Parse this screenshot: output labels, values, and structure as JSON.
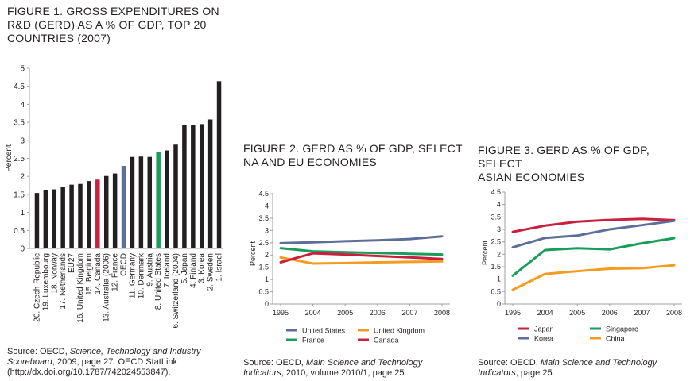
{
  "colors": {
    "black": "#231f20",
    "red": "#c8203e",
    "blue": "#5b6f9a",
    "green": "#1a9d5a",
    "orange": "#f39c1f",
    "axis": "#9d9fa2"
  },
  "fig1": {
    "title": "FIGURE 1. GROSS EXPENDITURES ON\nR&D (GERD) AS A % OF GDP, TOP 20\nCOUNTRIES (2007)",
    "source_a": "Source: OECD, ",
    "source_b": "Science, Technology and Industry Scoreboard",
    "source_c": ", 2009, page 27. OECD StatLink (http://dx.doi.org/10.1787/742024553847)."
  },
  "fig2": {
    "title": "FIGURE 2. GERD AS % OF GDP, SELECT\nNA AND EU ECONOMIES",
    "source_a": "Source: OECD, ",
    "source_b": "Main Science and Technology Indicators",
    "source_c": ", 2010, volume 2010/1, page 25."
  },
  "fig3": {
    "title": "FIGURE 3. GERD AS % OF GDP, SELECT\nASIAN ECONOMIES",
    "source_a": "Source: OECD, ",
    "source_b": "Main Science and Technology Indicators",
    "source_c": ", page 25."
  },
  "chart_data": [
    {
      "type": "bar",
      "ylabel": "Percent",
      "ylim": [
        0,
        5
      ],
      "yticks": [
        "0",
        "0.5",
        "1",
        "1.5",
        "2",
        "2.5",
        "3",
        "3.5",
        "4",
        "4.5",
        "5"
      ],
      "categories": [
        "20. Czech Republic",
        "19. Luxembourg",
        "18. Norway",
        "17. Netherlands",
        "EU27",
        "16. United Kingdom",
        "15. Belgium",
        "14. Canada",
        "13. Australia (2006)",
        "12. France",
        "OECD",
        "11. Germany",
        "10. Denmark",
        "9. Austria",
        "8. United States",
        "7. Iceland",
        "6. Switzerland (2004)",
        "5. Japan",
        "4. Finland",
        "3. Korea",
        "2. Sweden",
        "1. Israel"
      ],
      "values": [
        1.54,
        1.63,
        1.64,
        1.7,
        1.77,
        1.79,
        1.87,
        1.91,
        2.01,
        2.08,
        2.29,
        2.54,
        2.55,
        2.54,
        2.68,
        2.72,
        2.88,
        3.42,
        3.43,
        3.45,
        3.58,
        4.64
      ],
      "highlight": {
        "7": "red",
        "10": "blue",
        "14": "green"
      }
    },
    {
      "type": "line",
      "ylabel": "Percent",
      "ylim": [
        0,
        4.5
      ],
      "yticks": [
        "0",
        "0.5",
        "1",
        "1.5",
        "2",
        "2.5",
        "3",
        "3.5",
        "4",
        "4.5"
      ],
      "x": [
        "1995",
        "2004",
        "2005",
        "2006",
        "2007",
        "2008"
      ],
      "series": [
        {
          "name": "United States",
          "color": "blue",
          "values": [
            2.48,
            2.52,
            2.56,
            2.6,
            2.65,
            2.76
          ]
        },
        {
          "name": "United Kingdom",
          "color": "orange",
          "values": [
            1.9,
            1.65,
            1.67,
            1.7,
            1.72,
            1.74
          ]
        },
        {
          "name": "France",
          "color": "green",
          "values": [
            2.28,
            2.15,
            2.11,
            2.08,
            2.05,
            2.02
          ]
        },
        {
          "name": "Canada",
          "color": "red",
          "values": [
            1.7,
            2.07,
            2.02,
            1.96,
            1.9,
            1.84
          ]
        }
      ]
    },
    {
      "type": "line",
      "ylabel": "Percent",
      "ylim": [
        0,
        4.5
      ],
      "yticks": [
        "0",
        "0.5",
        "1",
        "1.5",
        "2",
        "2.5",
        "3",
        "3.5",
        "4",
        "4.5"
      ],
      "x": [
        "1995",
        "2004",
        "2005",
        "2006",
        "2007",
        "2008"
      ],
      "series": [
        {
          "name": "Japan",
          "color": "red",
          "values": [
            2.9,
            3.15,
            3.31,
            3.38,
            3.42,
            3.37
          ]
        },
        {
          "name": "Singapore",
          "color": "green",
          "values": [
            1.14,
            2.17,
            2.24,
            2.2,
            2.44,
            2.65
          ]
        },
        {
          "name": "Korea",
          "color": "blue",
          "values": [
            2.28,
            2.66,
            2.75,
            3.0,
            3.17,
            3.34
          ]
        },
        {
          "name": "China",
          "color": "orange",
          "values": [
            0.57,
            1.21,
            1.32,
            1.42,
            1.44,
            1.56
          ]
        }
      ]
    }
  ]
}
